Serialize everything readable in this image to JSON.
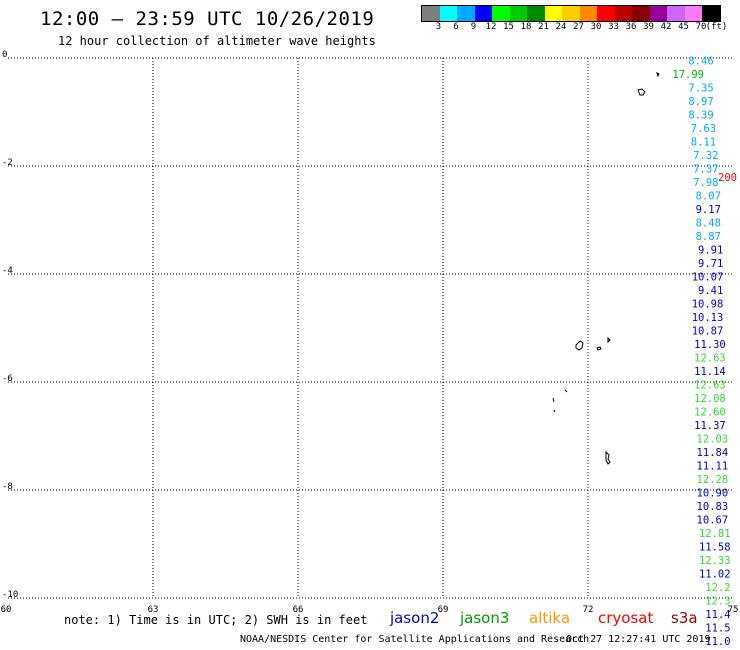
{
  "header": {
    "title": "12:00 – 23:59 UTC 10/26/2019",
    "subtitle": "12 hour collection of altimeter wave heights"
  },
  "legend": {
    "colors": [
      "#7f7f7f",
      "#00ffff",
      "#00aaff",
      "#0000ff",
      "#00ff00",
      "#00cc00",
      "#008800",
      "#ffff00",
      "#ffcc00",
      "#ff8800",
      "#ff0000",
      "#bb0000",
      "#880000",
      "#990099",
      "#cc66ff",
      "#ff77ff",
      "#000000"
    ],
    "ticks": [
      "3",
      "6",
      "9",
      "12",
      "15",
      "18",
      "21",
      "24",
      "27",
      "30",
      "33",
      "36",
      "39",
      "42",
      "45",
      "70",
      "(ft)"
    ]
  },
  "axes": {
    "x_ticks": [
      "60",
      "63",
      "66",
      "69",
      "72",
      "75"
    ],
    "y_ticks": [
      "0",
      "-2",
      "-4",
      "-6",
      "-8",
      "-10"
    ],
    "lon_range": [
      60,
      75
    ],
    "lat_range": [
      -10,
      0
    ]
  },
  "observations": [
    {
      "text": "8.46",
      "lat": -0.05,
      "lon": 74.6,
      "color": "#00aaff"
    },
    {
      "text": "17.99",
      "lat": -0.3,
      "lon": 74.4,
      "color": "#00bb00"
    },
    {
      "text": "7.35",
      "lat": -0.55,
      "lon": 74.6,
      "color": "#00aaff"
    },
    {
      "text": "8.97",
      "lat": -0.8,
      "lon": 74.6,
      "color": "#00aaff"
    },
    {
      "text": "8.39",
      "lat": -1.05,
      "lon": 74.6,
      "color": "#00aaff"
    },
    {
      "text": "7.63",
      "lat": -1.3,
      "lon": 74.65,
      "color": "#00aaff"
    },
    {
      "text": "8.11",
      "lat": -1.55,
      "lon": 74.65,
      "color": "#00aaff"
    },
    {
      "text": "7.32",
      "lat": -1.8,
      "lon": 74.7,
      "color": "#00aaff"
    },
    {
      "text": "7.37",
      "lat": -2.05,
      "lon": 74.7,
      "color": "#00aaff"
    },
    {
      "text": "7.98",
      "lat": -2.3,
      "lon": 74.7,
      "color": "#00aaff"
    },
    {
      "text": "8.07",
      "lat": -2.55,
      "lon": 74.75,
      "color": "#00aaff"
    },
    {
      "text": "9.17",
      "lat": -2.8,
      "lon": 74.75,
      "color": "#0000cc"
    },
    {
      "text": "8.48",
      "lat": -3.05,
      "lon": 74.75,
      "color": "#00aaff"
    },
    {
      "text": "8.87",
      "lat": -3.3,
      "lon": 74.75,
      "color": "#00aaff"
    },
    {
      "text": "9.91",
      "lat": -3.55,
      "lon": 74.8,
      "color": "#0000cc"
    },
    {
      "text": "9.71",
      "lat": -3.8,
      "lon": 74.8,
      "color": "#0000cc"
    },
    {
      "text": "10.07",
      "lat": -4.05,
      "lon": 74.8,
      "color": "#0000cc"
    },
    {
      "text": "9.41",
      "lat": -4.3,
      "lon": 74.8,
      "color": "#0000cc"
    },
    {
      "text": "10.98",
      "lat": -4.55,
      "lon": 74.8,
      "color": "#0000cc"
    },
    {
      "text": "10.13",
      "lat": -4.8,
      "lon": 74.8,
      "color": "#0000cc"
    },
    {
      "text": "10.87",
      "lat": -5.05,
      "lon": 74.8,
      "color": "#0000cc"
    },
    {
      "text": "11.30",
      "lat": -5.3,
      "lon": 74.85,
      "color": "#0000cc"
    },
    {
      "text": "12.63",
      "lat": -5.55,
      "lon": 74.85,
      "color": "#33dd33"
    },
    {
      "text": "11.14",
      "lat": -5.8,
      "lon": 74.85,
      "color": "#0000cc"
    },
    {
      "text": "12.63",
      "lat": -6.05,
      "lon": 74.85,
      "color": "#33dd33"
    },
    {
      "text": "12.08",
      "lat": -6.3,
      "lon": 74.85,
      "color": "#33dd33"
    },
    {
      "text": "12.60",
      "lat": -6.55,
      "lon": 74.85,
      "color": "#33dd33"
    },
    {
      "text": "11.37",
      "lat": -6.8,
      "lon": 74.85,
      "color": "#0000cc"
    },
    {
      "text": "12.03",
      "lat": -7.05,
      "lon": 74.9,
      "color": "#33dd33"
    },
    {
      "text": "11.84",
      "lat": -7.3,
      "lon": 74.9,
      "color": "#0000cc"
    },
    {
      "text": "11.11",
      "lat": -7.55,
      "lon": 74.9,
      "color": "#0000cc"
    },
    {
      "text": "12.28",
      "lat": -7.8,
      "lon": 74.9,
      "color": "#33dd33"
    },
    {
      "text": "10.90",
      "lat": -8.05,
      "lon": 74.9,
      "color": "#0000cc"
    },
    {
      "text": "10.83",
      "lat": -8.3,
      "lon": 74.9,
      "color": "#0000cc"
    },
    {
      "text": "10.67",
      "lat": -8.55,
      "lon": 74.9,
      "color": "#0000cc"
    },
    {
      "text": "12.81",
      "lat": -8.8,
      "lon": 74.95,
      "color": "#33dd33"
    },
    {
      "text": "11.58",
      "lat": -9.05,
      "lon": 74.95,
      "color": "#0000cc"
    },
    {
      "text": "12.33",
      "lat": -9.3,
      "lon": 74.95,
      "color": "#33dd33"
    },
    {
      "text": "11.02",
      "lat": -9.55,
      "lon": 74.95,
      "color": "#0000cc"
    },
    {
      "text": "12.2",
      "lat": -9.8,
      "lon": 74.95,
      "color": "#33dd33"
    },
    {
      "text": "12.3",
      "lat": -10.05,
      "lon": 74.95,
      "color": "#33dd33"
    },
    {
      "text": "11.4",
      "lat": -10.3,
      "lon": 74.95,
      "color": "#0000cc"
    },
    {
      "text": "11.5",
      "lat": -10.55,
      "lon": 74.95,
      "color": "#0000cc"
    },
    {
      "text": "11.0",
      "lat": -10.8,
      "lon": 74.95,
      "color": "#0000cc"
    },
    {
      "text": "200",
      "lat": -2.2,
      "lon": 75.0,
      "color": "#ff0000"
    }
  ],
  "footer": {
    "note": "note: 1) Time is in UTC; 2) SWH is in feet",
    "satellites": [
      {
        "label": "jason2",
        "color": "#0000cc"
      },
      {
        "label": "jason3",
        "color": "#009900"
      },
      {
        "label": "altika",
        "color": "#ff9900"
      },
      {
        "label": "cryosat",
        "color": "#ff0000"
      },
      {
        "label": "s3a",
        "color": "#990000"
      }
    ],
    "credit": "NOAA/NESDIS Center for Satellite Applications and Research",
    "timestamp": "Oct 27 12:27:41 UTC 2019"
  }
}
